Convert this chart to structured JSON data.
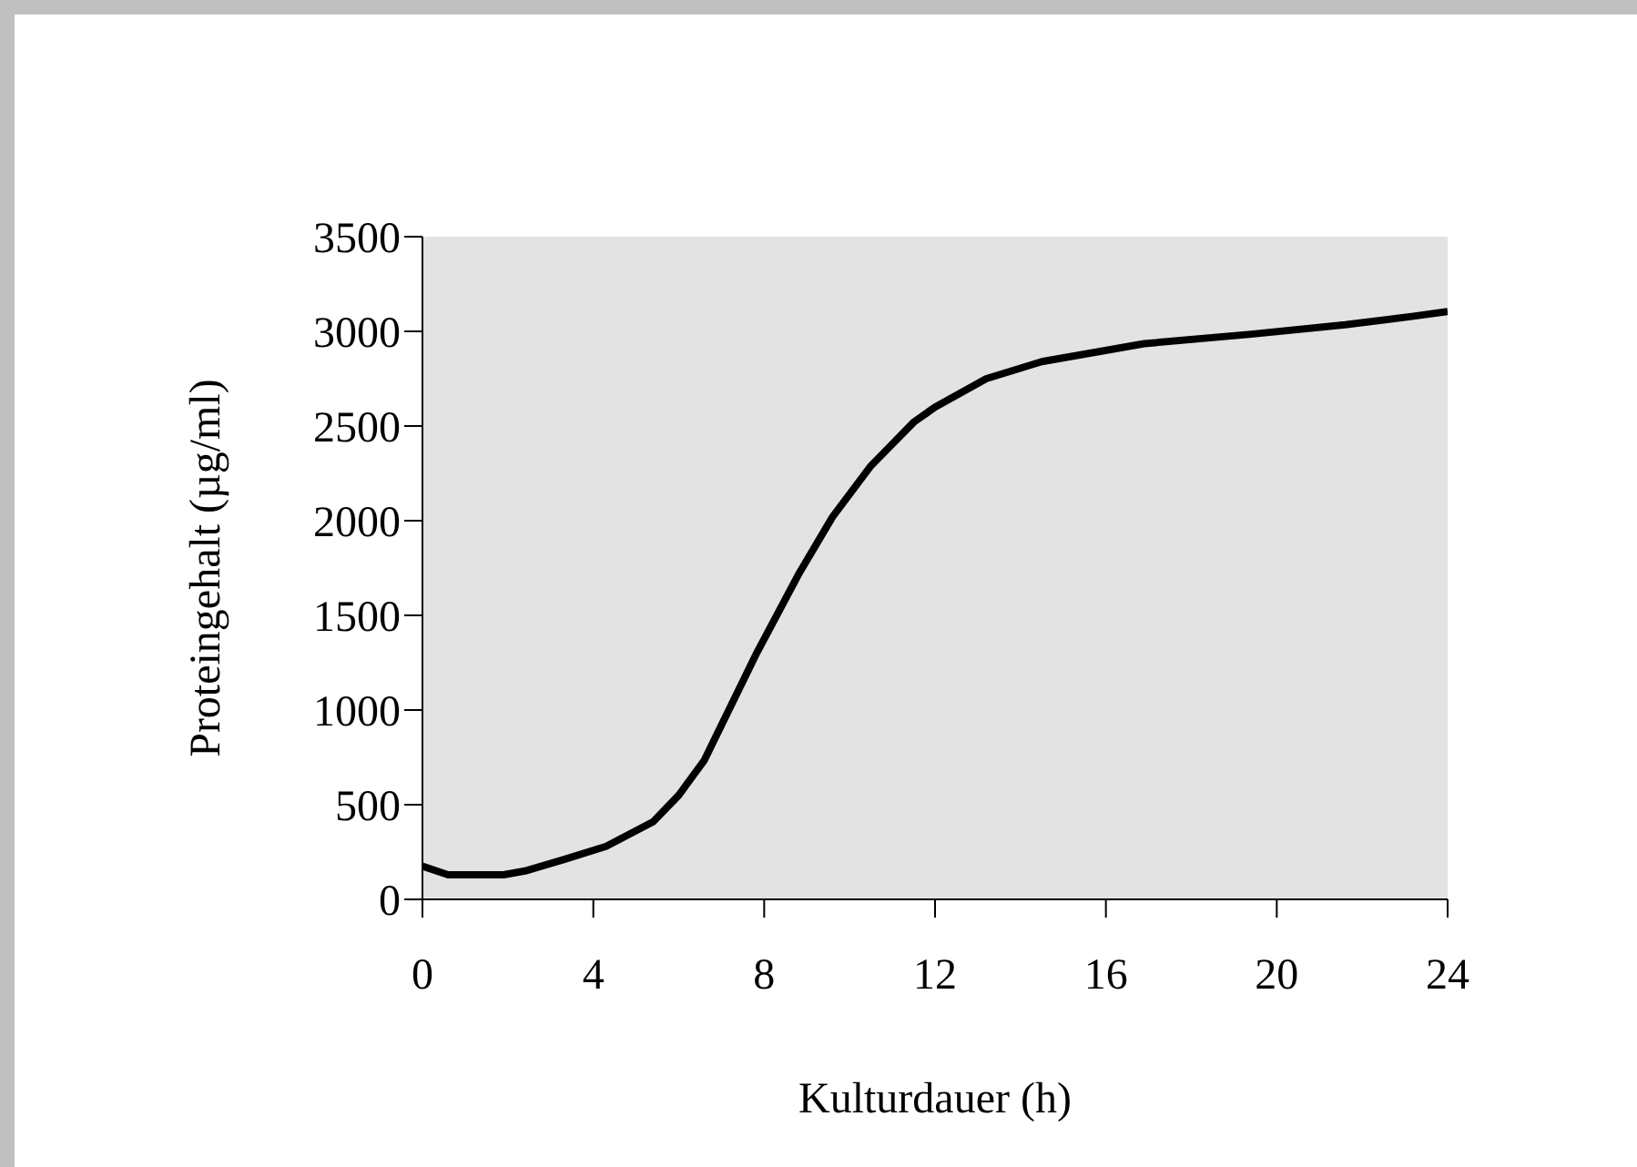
{
  "chart_data": {
    "type": "line",
    "xlabel": "Kulturdauer (h)",
    "ylabel": "Proteingehalt (µg/ml)",
    "x": [
      0,
      0.6,
      1.9,
      2.4,
      3.3,
      4.3,
      5.4,
      6,
      6.6,
      7.8,
      8.8,
      9.6,
      10.5,
      11.5,
      12,
      13.2,
      14.5,
      16.9,
      19.4,
      21.6,
      23.2,
      24
    ],
    "series": [
      {
        "color": "#000000",
        "values": [
          175,
          130,
          130,
          150,
          210,
          280,
          410,
          550,
          735,
          1290,
          1715,
          2020,
          2290,
          2520,
          2600,
          2750,
          2840,
          2935,
          2985,
          3035,
          3080,
          3105
        ]
      }
    ],
    "xlim": [
      0,
      24
    ],
    "xticks": [
      0,
      4,
      8,
      12,
      16,
      20,
      24
    ],
    "ylim": [
      0,
      3500
    ],
    "yticks": [
      0,
      500,
      1000,
      1500,
      2000,
      2500,
      3000,
      3500
    ],
    "grid": false,
    "marker": "none",
    "line_style": "solid",
    "legend": false
  }
}
